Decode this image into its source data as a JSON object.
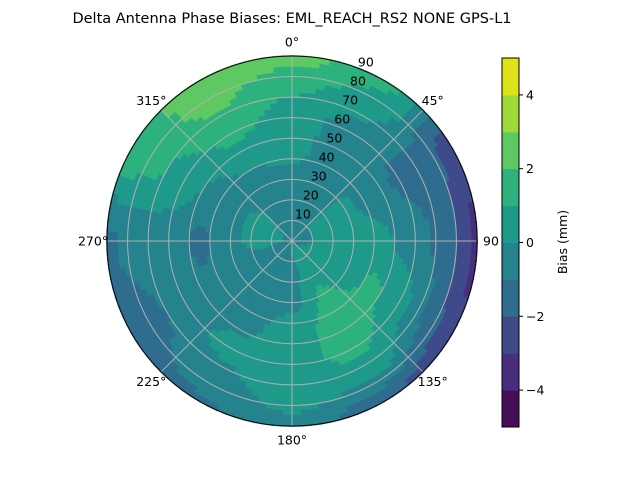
{
  "chart_data": {
    "type": "heatmap",
    "subtype": "polar-filled-contour",
    "title": "Delta Antenna Phase Biases: EML_REACH_RS2   NONE GPS-L1",
    "theta_direction": "clockwise",
    "theta_zero": "north",
    "theta_ticks": [
      "0°",
      "45°",
      "90",
      "135°",
      "180°",
      "225°",
      "270°",
      "315°"
    ],
    "theta_tick_values": [
      0,
      45,
      90,
      135,
      180,
      225,
      270,
      315
    ],
    "r_ticks": [
      "10",
      "20",
      "30",
      "40",
      "50",
      "60",
      "70",
      "80",
      "90"
    ],
    "r_tick_values": [
      10,
      20,
      30,
      40,
      50,
      60,
      70,
      80,
      90
    ],
    "rlim": [
      0,
      90
    ],
    "grid": true,
    "colorbar": {
      "label": "Bias (mm)",
      "ticks": [
        "4",
        "2",
        "0",
        "−2",
        "−4"
      ],
      "tick_values": [
        4,
        2,
        0,
        -2,
        -4
      ],
      "range": [
        -5,
        5
      ],
      "levels": [
        -5,
        -4,
        -3,
        -2,
        -1,
        0,
        1,
        2,
        3,
        4,
        5
      ],
      "colormap": "viridis",
      "level_colors": [
        "#450f58",
        "#472f7d",
        "#3e4a89",
        "#2e6d8e",
        "#25838e",
        "#1f9a8a",
        "#2db27d",
        "#5ec962",
        "#9fda3a",
        "#dde318"
      ]
    },
    "grid_azimuth_deg": [
      0,
      30,
      60,
      90,
      120,
      150,
      180,
      210,
      240,
      270,
      300,
      330
    ],
    "grid_zenith_deg": [
      0,
      15,
      30,
      45,
      60,
      75,
      90
    ],
    "values_mm": [
      [
        -0.5,
        -0.5,
        -0.3,
        0.3,
        0.5,
        1.2,
        2.5
      ],
      [
        -0.5,
        -0.5,
        -0.5,
        -0.6,
        -0.5,
        0.5,
        1.3
      ],
      [
        -0.5,
        0.3,
        0.3,
        -0.5,
        -1.2,
        -1.5,
        -2.5
      ],
      [
        -0.5,
        0.3,
        0.5,
        0.2,
        -0.5,
        -1.5,
        -3.5
      ],
      [
        -0.3,
        0.5,
        0.6,
        1.2,
        0.5,
        -1.2,
        -3.0
      ],
      [
        0.3,
        0.5,
        1.2,
        1.5,
        1.3,
        0.5,
        -2.0
      ],
      [
        0.3,
        -0.3,
        -0.3,
        0.5,
        0.6,
        0.5,
        -0.3
      ],
      [
        -0.3,
        -0.5,
        -0.5,
        -0.3,
        0.3,
        -0.3,
        -1.2
      ],
      [
        -0.5,
        -0.5,
        -0.6,
        -0.8,
        -0.5,
        -1.2,
        -1.5
      ],
      [
        -0.3,
        0.5,
        -0.3,
        -1.3,
        -0.5,
        -0.5,
        -1.2
      ],
      [
        -0.3,
        0.5,
        -0.3,
        -0.3,
        0.5,
        1.2,
        1.5
      ],
      [
        -0.5,
        -0.3,
        -0.5,
        0.3,
        1.3,
        2.2,
        2.6
      ]
    ]
  }
}
